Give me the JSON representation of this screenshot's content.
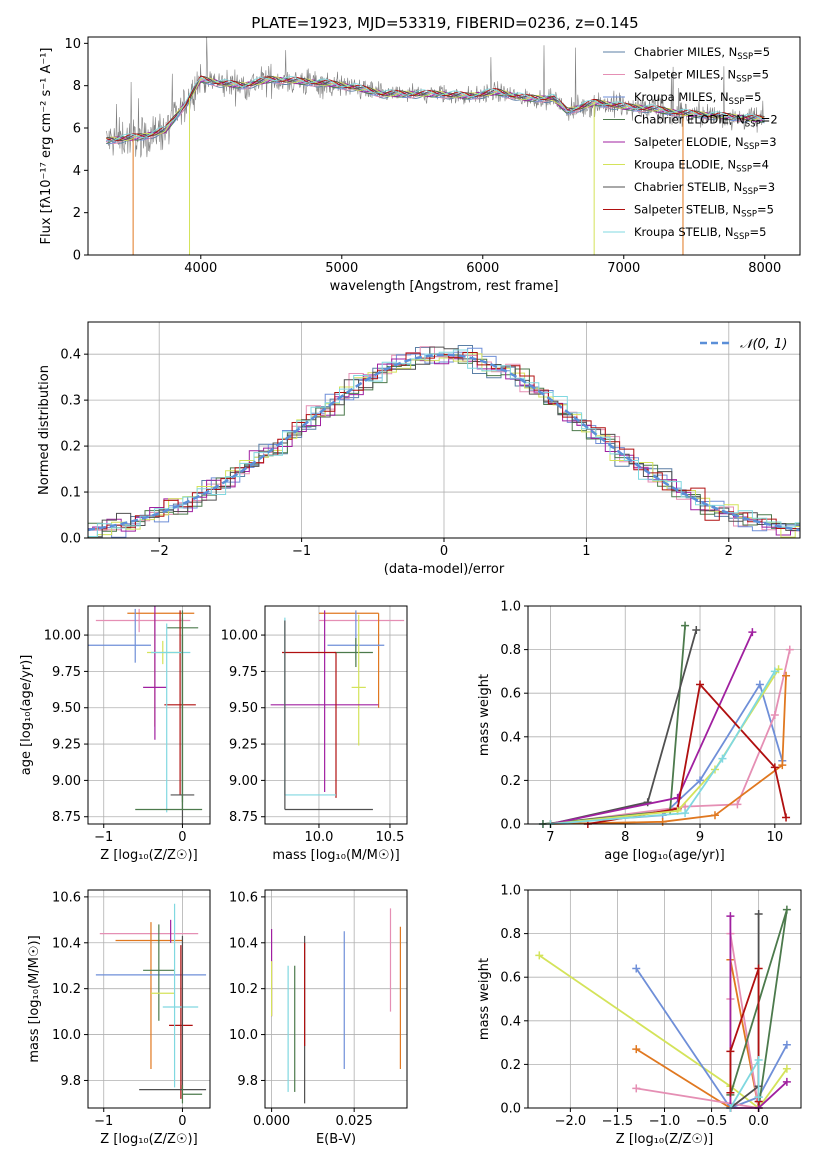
{
  "figure": {
    "title": "PLATE=1923, MJD=53319, FIBERID=0236, z=0.145",
    "models": [
      {
        "name": "Chabrier MILES",
        "nssp": "5",
        "color": "#5b7fa6"
      },
      {
        "name": "Salpeter MILES",
        "nssp": "5",
        "color": "#e58fb4"
      },
      {
        "name": "Kroupa MILES",
        "nssp": "5",
        "color": "#6f8fd8"
      },
      {
        "name": "Chabrier ELODIE",
        "nssp": "2",
        "color": "#4c7a4c"
      },
      {
        "name": "Salpeter ELODIE",
        "nssp": "3",
        "color": "#a020a0"
      },
      {
        "name": "Kroupa ELODIE",
        "nssp": "4",
        "color": "#d4e35a"
      },
      {
        "name": "Chabrier STELIB",
        "nssp": "3",
        "color": "#505050"
      },
      {
        "name": "Salpeter STELIB",
        "nssp": "5",
        "color": "#b01010"
      },
      {
        "name": "Kroupa STELIB",
        "nssp": "5",
        "color": "#80d8e0"
      }
    ]
  },
  "chart_data": [
    {
      "id": "spectrum",
      "type": "line",
      "xlabel": "wavelength [Angstrom, rest frame]",
      "ylabel": "Flux [fλ10⁻¹⁷ erg cm⁻² s⁻¹ A⁻¹]",
      "xlim": [
        3200,
        8250
      ],
      "ylim": [
        0,
        10.3
      ],
      "xticks": [
        4000,
        5000,
        6000,
        7000,
        8000
      ],
      "yticks": [
        0,
        2,
        4,
        6,
        8,
        10
      ],
      "legend": "top-right",
      "grid": false,
      "continuum": {
        "x": [
          3330,
          3450,
          3600,
          3750,
          3900,
          4000,
          4150,
          4300,
          4500,
          4700,
          4900,
          5100,
          5300,
          5500,
          5700,
          5900,
          6100,
          6300,
          6500,
          6600,
          6800,
          7000,
          7200,
          7400,
          7600,
          7800,
          8000
        ],
        "y": [
          5.4,
          5.5,
          5.6,
          5.9,
          7.2,
          8.3,
          8.1,
          8.0,
          8.3,
          8.2,
          8.1,
          7.9,
          7.6,
          7.6,
          7.6,
          7.5,
          7.7,
          7.4,
          7.4,
          6.8,
          7.2,
          7.0,
          6.9,
          6.7,
          6.6,
          6.5,
          6.4
        ]
      }
    },
    {
      "id": "residuals",
      "type": "bar",
      "xlabel": "(data-model)/error",
      "ylabel": "Normed distribution",
      "xlim": [
        -2.5,
        2.5
      ],
      "ylim": [
        0,
        0.47
      ],
      "xticks": [
        -2,
        -1,
        0,
        1,
        2
      ],
      "yticks": [
        0.0,
        0.1,
        0.2,
        0.3,
        0.4
      ],
      "legend": "top-right",
      "legend_label": "𝒩(0, 1)",
      "grid": true
    },
    {
      "id": "age_vs_Z",
      "type": "scatter",
      "xlabel": "Z [log₁₀(Z/Z☉)]",
      "ylabel": "age  [log₁₀(age/yr)]",
      "xlim": [
        -1.2,
        0.35
      ],
      "ylim": [
        8.7,
        10.2
      ],
      "xticks": [
        -1,
        0
      ],
      "yticks": [
        8.75,
        9.0,
        9.25,
        9.5,
        9.75,
        10.0
      ],
      "grid": true,
      "points": [
        {
          "x": -0.55,
          "xerr": [
            0.55,
            0.65
          ],
          "y": 10.1,
          "yerr": [
            0.08,
            0.08
          ]
        },
        {
          "x": -0.35,
          "xerr": [
            0.35,
            0.5
          ],
          "y": 10.15,
          "yerr": [
            0.78,
            0.0
          ]
        },
        {
          "x": -0.6,
          "xerr": [
            0.6,
            0.2
          ],
          "y": 9.93,
          "yerr": [
            0.12,
            0.25
          ]
        },
        {
          "x": 0.0,
          "xerr": [
            0.2,
            0.2
          ],
          "y": 10.05,
          "yerr": [
            1.2,
            0.12
          ]
        },
        {
          "x": -0.25,
          "xerr": [
            0.2,
            0.2
          ],
          "y": 9.88,
          "yerr": [
            0.08,
            0.08
          ]
        },
        {
          "x": -0.35,
          "xerr": [
            0.15,
            0.15
          ],
          "y": 9.64,
          "yerr": [
            0.36,
            0.56
          ]
        },
        {
          "x": -0.03,
          "xerr": [
            0.2,
            0.2
          ],
          "y": 9.52,
          "yerr": [
            0.62,
            0.65
          ]
        },
        {
          "x": -0.2,
          "xerr": [
            0.2,
            0.3
          ],
          "y": 9.88,
          "yerr": [
            1.1,
            0.2
          ]
        },
        {
          "x": 0.0,
          "xerr": [
            0.15,
            0.15
          ],
          "y": 8.9,
          "yerr": [
            0.2,
            1.1
          ]
        },
        {
          "x": 0.0,
          "xerr": [
            0.6,
            0.25
          ],
          "y": 8.8,
          "yerr": [
            0.0,
            1.32
          ]
        }
      ]
    },
    {
      "id": "age_vs_mass",
      "type": "scatter",
      "xlabel": "mass [log₁₀(M/M☉)]",
      "ylabel": "",
      "xlim": [
        9.62,
        10.62
      ],
      "ylim": [
        8.7,
        10.2
      ],
      "xticks": [
        10.0,
        10.5
      ],
      "yticks": [
        8.75,
        9.0,
        9.25,
        9.5,
        9.75,
        10.0
      ],
      "grid": true,
      "points": [
        {
          "x": 10.4,
          "xerr": [
            0.4,
            0.2
          ],
          "y": 10.1,
          "yerr": [
            0.0,
            0.0
          ]
        },
        {
          "x": 10.42,
          "xerr": [
            0.42,
            0.0
          ],
          "y": 10.15,
          "yerr": [
            0.65,
            0.0
          ]
        },
        {
          "x": 10.26,
          "xerr": [
            0.2,
            0.2
          ],
          "y": 9.93,
          "yerr": [
            0.1,
            0.24
          ]
        },
        {
          "x": 10.26,
          "xerr": [
            0.15,
            0.12
          ],
          "y": 9.88,
          "yerr": [
            0.1,
            0.1
          ]
        },
        {
          "x": 10.28,
          "xerr": [
            0.05,
            0.05
          ],
          "y": 9.64,
          "yerr": [
            0.4,
            0.5
          ]
        },
        {
          "x": 10.04,
          "xerr": [
            0.38,
            0.38
          ],
          "y": 9.52,
          "yerr": [
            0.6,
            0.65
          ]
        },
        {
          "x": 10.12,
          "xerr": [
            0.38,
            0.0
          ],
          "y": 9.88,
          "yerr": [
            1.0,
            0.0
          ]
        },
        {
          "x": 9.76,
          "xerr": [
            0.0,
            0.36
          ],
          "y": 8.9,
          "yerr": [
            0.0,
            1.22
          ]
        },
        {
          "x": 9.76,
          "xerr": [
            0.0,
            0.62
          ],
          "y": 8.8,
          "yerr": [
            0.0,
            1.3
          ]
        }
      ]
    },
    {
      "id": "mass_weight_vs_age",
      "type": "line",
      "xlabel": "age  [log₁₀(age/yr)]",
      "ylabel": "mass weight",
      "xlim": [
        6.7,
        10.35
      ],
      "ylim": [
        0,
        1.0
      ],
      "xticks": [
        7,
        8,
        9,
        10
      ],
      "yticks": [
        0.0,
        0.2,
        0.4,
        0.6,
        0.8,
        1.0
      ],
      "grid": true,
      "series": [
        {
          "color": "#6f8fd8",
          "x": [
            6.9,
            8.5,
            9.0,
            9.8,
            10.1
          ],
          "y": [
            0.0,
            0.04,
            0.2,
            0.64,
            0.29
          ]
        },
        {
          "color": "#e58fb4",
          "x": [
            7.0,
            8.8,
            9.5,
            10.0,
            10.2
          ],
          "y": [
            0.0,
            0.08,
            0.09,
            0.5,
            0.8
          ]
        },
        {
          "color": "#e07820",
          "x": [
            7.0,
            8.5,
            9.2,
            10.1,
            10.15
          ],
          "y": [
            0.0,
            0.01,
            0.04,
            0.27,
            0.68
          ]
        },
        {
          "color": "#4c7a4c",
          "x": [
            6.9,
            8.6,
            8.8
          ],
          "y": [
            0.0,
            0.06,
            0.91
          ]
        },
        {
          "color": "#505050",
          "x": [
            7.0,
            8.3,
            8.95
          ],
          "y": [
            0.0,
            0.1,
            0.89
          ]
        },
        {
          "color": "#a020a0",
          "x": [
            7.0,
            8.7,
            9.7
          ],
          "y": [
            0.0,
            0.12,
            0.88
          ]
        },
        {
          "color": "#b01010",
          "x": [
            7.5,
            8.7,
            9.0,
            10.0,
            10.15
          ],
          "y": [
            0.0,
            0.07,
            0.64,
            0.26,
            0.03
          ]
        },
        {
          "color": "#d4e35a",
          "x": [
            7.0,
            8.7,
            9.2,
            10.05
          ],
          "y": [
            0.0,
            0.06,
            0.25,
            0.71
          ]
        },
        {
          "color": "#80d8e0",
          "x": [
            7.0,
            8.8,
            9.3,
            10.0
          ],
          "y": [
            0.0,
            0.05,
            0.3,
            0.7
          ]
        }
      ]
    },
    {
      "id": "mass_vs_Z",
      "type": "scatter",
      "xlabel": "Z [log₁₀(Z/Z☉)]",
      "ylabel": "mass [log₁₀(M/M☉)]",
      "xlim": [
        -1.2,
        0.35
      ],
      "ylim": [
        9.68,
        10.63
      ],
      "xticks": [
        -1,
        0
      ],
      "yticks": [
        9.8,
        10.0,
        10.2,
        10.4,
        10.6
      ],
      "grid": true,
      "points": [
        {
          "x": -0.45,
          "xerr": [
            0.6,
            0.65
          ],
          "y": 10.44,
          "yerr": [
            0.0,
            0.0
          ]
        },
        {
          "x": -0.4,
          "xerr": [
            0.45,
            0.4
          ],
          "y": 10.41,
          "yerr": [
            0.56,
            0.08
          ]
        },
        {
          "x": -0.3,
          "xerr": [
            0.8,
            0.6
          ],
          "y": 10.26,
          "yerr": [
            0.0,
            0.0
          ]
        },
        {
          "x": -0.3,
          "xerr": [
            0.2,
            0.2
          ],
          "y": 10.28,
          "yerr": [
            0.22,
            0.2
          ]
        },
        {
          "x": -0.25,
          "xerr": [
            0.15,
            0.15
          ],
          "y": 10.18,
          "yerr": [
            0.0,
            0.0
          ]
        },
        {
          "x": -0.15,
          "xerr": [
            0.0,
            0.0
          ],
          "y": 10.4,
          "yerr": [
            0.0,
            0.1
          ]
        },
        {
          "x": -0.02,
          "xerr": [
            0.15,
            0.15
          ],
          "y": 10.04,
          "yerr": [
            0.32,
            0.35
          ]
        },
        {
          "x": -0.1,
          "xerr": [
            0.15,
            0.3
          ],
          "y": 10.12,
          "yerr": [
            0.35,
            0.45
          ]
        },
        {
          "x": 0.0,
          "xerr": [
            0.55,
            0.3
          ],
          "y": 9.76,
          "yerr": [
            0.0,
            0.67
          ]
        },
        {
          "x": 0.0,
          "xerr": [
            0.0,
            0.25
          ],
          "y": 9.74,
          "yerr": [
            0.04,
            0.04
          ]
        }
      ]
    },
    {
      "id": "mass_vs_ebv",
      "type": "scatter",
      "xlabel": "E(B-V)",
      "ylabel": "",
      "xlim": [
        -0.002,
        0.041
      ],
      "ylim": [
        9.68,
        10.63
      ],
      "xticks": [
        0.0,
        0.025
      ],
      "yticks": [
        9.8,
        10.0,
        10.2,
        10.4,
        10.6
      ],
      "grid": true,
      "points": [
        {
          "x": 0.0,
          "y": 10.36,
          "yerr": [
            0.28,
            0.1
          ],
          "color": "#a020a0"
        },
        {
          "x": 0.0,
          "y": 10.2,
          "yerr": [
            0.12,
            0.12
          ],
          "color": "#d4e35a"
        },
        {
          "x": 0.005,
          "y": 10.0,
          "yerr": [
            0.25,
            0.3
          ],
          "color": "#80d8e0"
        },
        {
          "x": 0.007,
          "y": 10.0,
          "yerr": [
            0.25,
            0.3
          ],
          "color": "#4c7a4c"
        },
        {
          "x": 0.01,
          "y": 10.1,
          "yerr": [
            0.4,
            0.33
          ],
          "color": "#505050"
        },
        {
          "x": 0.01,
          "y": 10.2,
          "yerr": [
            0.25,
            0.2
          ],
          "color": "#b01010"
        },
        {
          "x": 0.022,
          "y": 10.15,
          "yerr": [
            0.3,
            0.3
          ],
          "color": "#6f8fd8"
        },
        {
          "x": 0.036,
          "y": 10.35,
          "yerr": [
            0.25,
            0.2
          ],
          "color": "#e58fb4"
        },
        {
          "x": 0.039,
          "y": 10.2,
          "yerr": [
            0.35,
            0.27
          ],
          "color": "#e07820"
        }
      ]
    },
    {
      "id": "mass_weight_vs_Z",
      "type": "line",
      "xlabel": "Z [log₁₀(Z/Z☉)]",
      "ylabel": "mass weight",
      "xlim": [
        -2.45,
        0.45
      ],
      "ylim": [
        0,
        1.0
      ],
      "xticks": [
        -2.0,
        -1.5,
        -1.0,
        -0.5,
        0.0
      ],
      "yticks": [
        0.0,
        0.2,
        0.4,
        0.6,
        0.8,
        1.0
      ],
      "grid": true,
      "series": [
        {
          "color": "#d4e35a",
          "x": [
            -2.33,
            -0.3,
            0.0,
            0.3
          ],
          "y": [
            0.7,
            0.1,
            0.0,
            0.18
          ]
        },
        {
          "color": "#6f8fd8",
          "x": [
            -1.3,
            -0.3,
            0.0,
            0.3
          ],
          "y": [
            0.64,
            0.0,
            0.05,
            0.29
          ]
        },
        {
          "color": "#e07820",
          "x": [
            -1.3,
            -0.3,
            -0.3,
            0.0
          ],
          "y": [
            0.27,
            0.0,
            0.68,
            0.0
          ]
        },
        {
          "color": "#e58fb4",
          "x": [
            -1.3,
            0.0,
            -0.3,
            -0.3
          ],
          "y": [
            0.09,
            0.0,
            0.8,
            0.5
          ]
        },
        {
          "color": "#4c7a4c",
          "x": [
            -0.3,
            0.3,
            0.0
          ],
          "y": [
            0.06,
            0.91,
            0.0
          ]
        },
        {
          "color": "#505050",
          "x": [
            -0.3,
            0.0,
            0.0
          ],
          "y": [
            0.0,
            0.1,
            0.89
          ]
        },
        {
          "color": "#a020a0",
          "x": [
            -0.3,
            -0.3,
            0.0,
            0.3
          ],
          "y": [
            0.88,
            0.0,
            0.0,
            0.12
          ]
        },
        {
          "color": "#b01010",
          "x": [
            -0.3,
            -0.3,
            0.0,
            0.0
          ],
          "y": [
            0.07,
            0.26,
            0.64,
            0.03
          ]
        },
        {
          "color": "#80d8e0",
          "x": [
            -0.3,
            0.0,
            0.0
          ],
          "y": [
            0.0,
            0.22,
            0.05
          ]
        }
      ]
    }
  ]
}
